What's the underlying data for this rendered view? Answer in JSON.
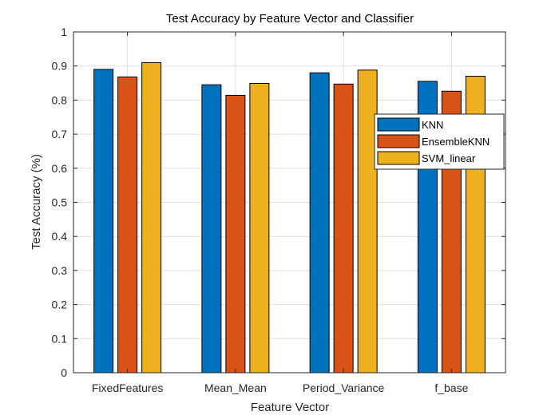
{
  "chart_data": {
    "type": "bar",
    "title": "Test Accuracy by Feature Vector and Classifier",
    "xlabel": "Feature Vector",
    "ylabel": "Test Accuracy (%)",
    "categories": [
      "FixedFeatures",
      "Mean_Mean",
      "Period_Variance",
      "f_base"
    ],
    "series": [
      {
        "name": "KNN",
        "color": "#0072BD",
        "values": [
          0.89,
          0.845,
          0.88,
          0.855
        ]
      },
      {
        "name": "EnsembleKNN",
        "color": "#D95319",
        "values": [
          0.868,
          0.814,
          0.847,
          0.826
        ]
      },
      {
        "name": "SVM_linear",
        "color": "#EDB120",
        "values": [
          0.91,
          0.849,
          0.888,
          0.87
        ]
      }
    ],
    "ylim": [
      0,
      1
    ],
    "yticks": [
      "0",
      "0.1",
      "0.2",
      "0.3",
      "0.4",
      "0.5",
      "0.6",
      "0.7",
      "0.8",
      "0.9",
      "1"
    ],
    "grid": true,
    "legend_position": "right"
  }
}
